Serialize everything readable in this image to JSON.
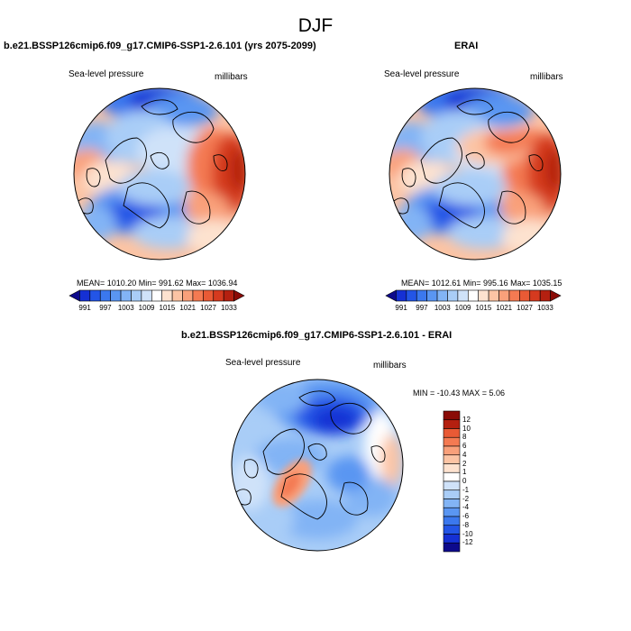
{
  "figure": {
    "title": "DJF"
  },
  "palette_abs": [
    "#0d0a8c",
    "#1530d4",
    "#2355e6",
    "#3b78ee",
    "#5a96f2",
    "#82b4f5",
    "#a9cdf7",
    "#cfe2f9",
    "#ffffff",
    "#fde2cf",
    "#fcc4a4",
    "#f9a07a",
    "#f47a52",
    "#e95a35",
    "#d53a1f",
    "#b42010",
    "#8a0b06"
  ],
  "palette_diff": [
    "#0d0a8c",
    "#1530d4",
    "#2355e6",
    "#3b78ee",
    "#5a96f2",
    "#82b4f5",
    "#a9cdf7",
    "#cfe2f9",
    "#ffffff",
    "#fde2cf",
    "#fcc4a4",
    "#f9a07a",
    "#f47a52",
    "#e95a35",
    "#b42010",
    "#8a0b06"
  ],
  "panels": [
    {
      "title": "b.e21.BSSP126cmip6.f09_g17.CMIP6-SSP1-2.6.101 (yrs 2075-2099)",
      "variable": "Sea-level pressure",
      "units": "millibars",
      "stats": "MEAN= 1010.20   Min= 991.62   Max= 1036.94",
      "colorbar_ticks": [
        "991",
        "997",
        "1003",
        "1009",
        "1015",
        "1021",
        "1027",
        "1033"
      ]
    },
    {
      "title": "ERAI",
      "variable": "Sea-level pressure",
      "units": "millibars",
      "stats": "MEAN= 1012.61   Min= 995.16   Max= 1035.15",
      "colorbar_ticks": [
        "991",
        "997",
        "1003",
        "1009",
        "1015",
        "1021",
        "1027",
        "1033"
      ]
    },
    {
      "title": "b.e21.BSSP126cmip6.f09_g17.CMIP6-SSP1-2.6.101 - ERAI",
      "variable": "Sea-level pressure",
      "units": "millibars",
      "stats": "MIN = -10.43 MAX =   5.06",
      "colorbar_ticks": [
        "12",
        "10",
        "8",
        "6",
        "4",
        "2",
        "1",
        "0",
        "-1",
        "-2",
        "-4",
        "-6",
        "-8",
        "-10",
        "-12"
      ]
    }
  ]
}
